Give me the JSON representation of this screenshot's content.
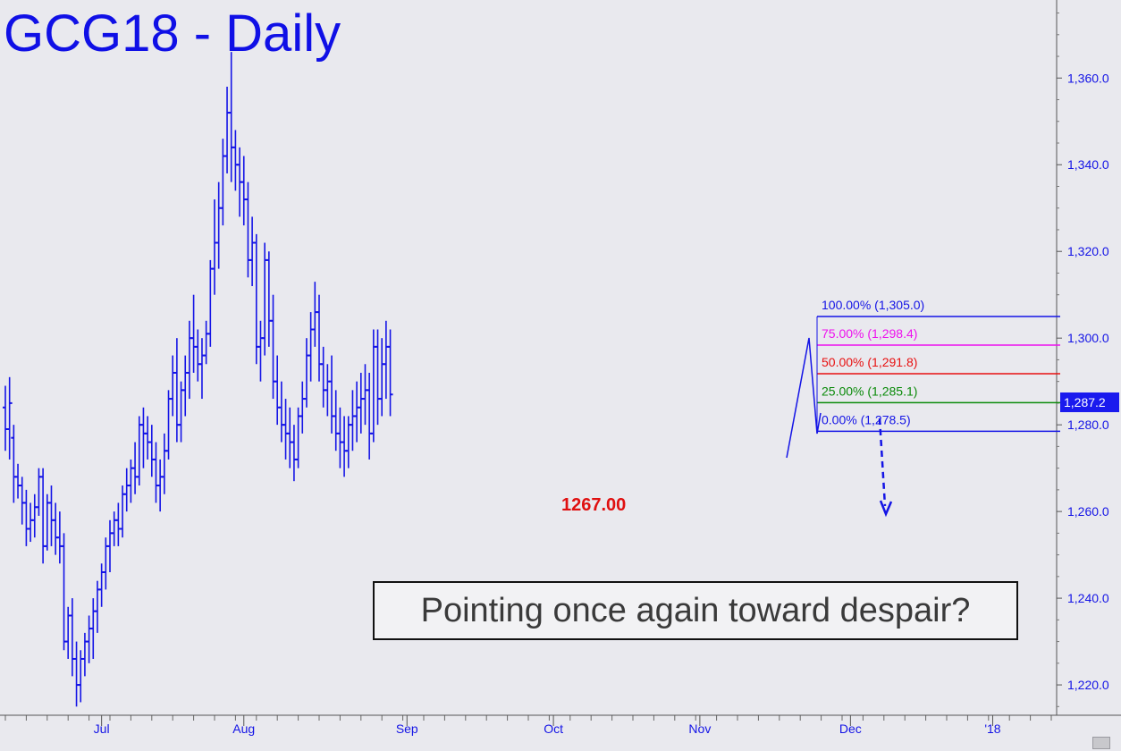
{
  "title": "GCG18 - Daily",
  "callout": "Pointing once again toward despair?",
  "low_annotation": "1267.00",
  "last_price_label": "1,287.2",
  "colors": {
    "bars": "#1414e6",
    "fib_100": "#1414e6",
    "fib_75": "#ee10ee",
    "fib_50": "#e81010",
    "fib_25": "#0a8a0a",
    "fib_0": "#1414e6",
    "low_label": "#e01010",
    "background": "#e9e9ee"
  },
  "chart_data": {
    "type": "ohlc",
    "ylim": [
      1213,
      1378
    ],
    "y_ticks": [
      "1,220.0",
      "1,240.0",
      "1,260.0",
      "1,280.0",
      "1,300.0",
      "1,320.0",
      "1,340.0",
      "1,360.0"
    ],
    "y_tick_values": [
      1220,
      1240,
      1260,
      1280,
      1300,
      1320,
      1340,
      1360
    ],
    "x_labels": [
      "Jul",
      "Aug",
      "Sep",
      "Oct",
      "Nov",
      "Dec",
      "'18"
    ],
    "x_label_index": [
      23,
      57,
      96,
      131,
      166,
      202,
      236
    ],
    "fib_levels": [
      {
        "label": "100.00% (1,305.0)",
        "value": 1305.0,
        "color": "#1414e6"
      },
      {
        "label": "75.00% (1,298.4)",
        "value": 1298.4,
        "color": "#ee10ee"
      },
      {
        "label": "50.00% (1,291.8)",
        "value": 1291.8,
        "color": "#e81010"
      },
      {
        "label": "25.00% (1,285.1)",
        "value": 1285.1,
        "color": "#0a8a0a"
      },
      {
        "label": "0.00% (1,278.5)",
        "value": 1278.5,
        "color": "#1414e6"
      }
    ],
    "series": [
      {
        "values": [
          [
            1284,
            1289,
            1274,
            1279
          ],
          [
            1279,
            1291,
            1272,
            1285
          ],
          [
            1277,
            1280,
            1262,
            1268
          ],
          [
            1268,
            1271,
            1263,
            1266
          ],
          [
            1266,
            1268,
            1257,
            1262
          ],
          [
            1262,
            1265,
            1252,
            1256
          ],
          [
            1256,
            1262,
            1253,
            1258
          ],
          [
            1258,
            1264,
            1254,
            1261
          ],
          [
            1261,
            1270,
            1259,
            1268
          ],
          [
            1268,
            1270,
            1248,
            1252
          ],
          [
            1252,
            1264,
            1251,
            1262
          ],
          [
            1262,
            1266,
            1252,
            1258
          ],
          [
            1258,
            1262,
            1250,
            1254
          ],
          [
            1254,
            1260,
            1248,
            1252
          ],
          [
            1252,
            1255,
            1228,
            1230
          ],
          [
            1230,
            1238,
            1226,
            1236
          ],
          [
            1236,
            1240,
            1222,
            1226
          ],
          [
            1226,
            1230,
            1215,
            1220
          ],
          [
            1220,
            1228,
            1216,
            1226
          ],
          [
            1226,
            1232,
            1222,
            1230
          ],
          [
            1230,
            1236,
            1225,
            1233
          ],
          [
            1233,
            1240,
            1226,
            1237
          ],
          [
            1237,
            1244,
            1232,
            1242
          ],
          [
            1242,
            1248,
            1238,
            1246
          ],
          [
            1246,
            1254,
            1242,
            1252
          ],
          [
            1252,
            1258,
            1246,
            1255
          ],
          [
            1255,
            1260,
            1252,
            1258
          ],
          [
            1258,
            1262,
            1252,
            1256
          ],
          [
            1256,
            1266,
            1254,
            1264
          ],
          [
            1264,
            1270,
            1260,
            1266
          ],
          [
            1266,
            1272,
            1262,
            1270
          ],
          [
            1270,
            1276,
            1264,
            1268
          ],
          [
            1268,
            1282,
            1266,
            1280
          ],
          [
            1280,
            1284,
            1270,
            1278
          ],
          [
            1278,
            1282,
            1272,
            1276
          ],
          [
            1276,
            1280,
            1268,
            1272
          ],
          [
            1272,
            1276,
            1262,
            1266
          ],
          [
            1266,
            1272,
            1260,
            1268
          ],
          [
            1268,
            1278,
            1264,
            1274
          ],
          [
            1274,
            1288,
            1272,
            1286
          ],
          [
            1286,
            1296,
            1282,
            1292
          ],
          [
            1292,
            1300,
            1276,
            1280
          ],
          [
            1280,
            1290,
            1276,
            1288
          ],
          [
            1288,
            1296,
            1282,
            1292
          ],
          [
            1292,
            1304,
            1286,
            1300
          ],
          [
            1300,
            1310,
            1292,
            1298
          ],
          [
            1298,
            1302,
            1290,
            1294
          ],
          [
            1294,
            1300,
            1286,
            1296
          ],
          [
            1296,
            1304,
            1294,
            1301
          ],
          [
            1301,
            1318,
            1298,
            1316
          ],
          [
            1316,
            1332,
            1310,
            1322
          ],
          [
            1322,
            1336,
            1316,
            1330
          ],
          [
            1330,
            1346,
            1326,
            1342
          ],
          [
            1342,
            1358,
            1338,
            1352
          ],
          [
            1352,
            1366,
            1336,
            1344
          ],
          [
            1344,
            1348,
            1334,
            1340
          ],
          [
            1340,
            1344,
            1328,
            1336
          ],
          [
            1336,
            1342,
            1326,
            1332
          ],
          [
            1332,
            1336,
            1314,
            1318
          ],
          [
            1318,
            1328,
            1312,
            1322
          ],
          [
            1322,
            1324,
            1294,
            1298
          ],
          [
            1298,
            1304,
            1290,
            1300
          ],
          [
            1300,
            1322,
            1296,
            1318
          ],
          [
            1318,
            1320,
            1298,
            1304
          ],
          [
            1304,
            1310,
            1286,
            1290
          ],
          [
            1290,
            1296,
            1280,
            1284
          ],
          [
            1284,
            1290,
            1276,
            1280
          ],
          [
            1280,
            1286,
            1272,
            1278
          ],
          [
            1278,
            1284,
            1270,
            1276
          ],
          [
            1276,
            1280,
            1267,
            1272
          ],
          [
            1272,
            1284,
            1270,
            1282
          ],
          [
            1282,
            1290,
            1278,
            1286
          ],
          [
            1286,
            1300,
            1284,
            1296
          ],
          [
            1296,
            1306,
            1290,
            1302
          ],
          [
            1302,
            1313,
            1298,
            1306
          ],
          [
            1306,
            1310,
            1290,
            1294
          ],
          [
            1294,
            1298,
            1284,
            1288
          ],
          [
            1288,
            1294,
            1282,
            1290
          ],
          [
            1290,
            1296,
            1278,
            1282
          ],
          [
            1282,
            1288,
            1274,
            1278
          ],
          [
            1278,
            1284,
            1270,
            1276
          ],
          [
            1276,
            1282,
            1268,
            1274
          ],
          [
            1274,
            1282,
            1270,
            1280
          ],
          [
            1280,
            1288,
            1274,
            1282
          ],
          [
            1282,
            1290,
            1276,
            1284
          ],
          [
            1284,
            1292,
            1278,
            1286
          ],
          [
            1286,
            1294,
            1280,
            1288
          ],
          [
            1288,
            1292,
            1272,
            1278
          ],
          [
            1278,
            1302,
            1276,
            1298
          ],
          [
            1298,
            1302,
            1280,
            1286
          ],
          [
            1286,
            1300,
            1282,
            1294
          ],
          [
            1294,
            1304,
            1286,
            1298
          ],
          [
            1298,
            1302,
            1282,
            1287
          ]
        ]
      }
    ]
  }
}
